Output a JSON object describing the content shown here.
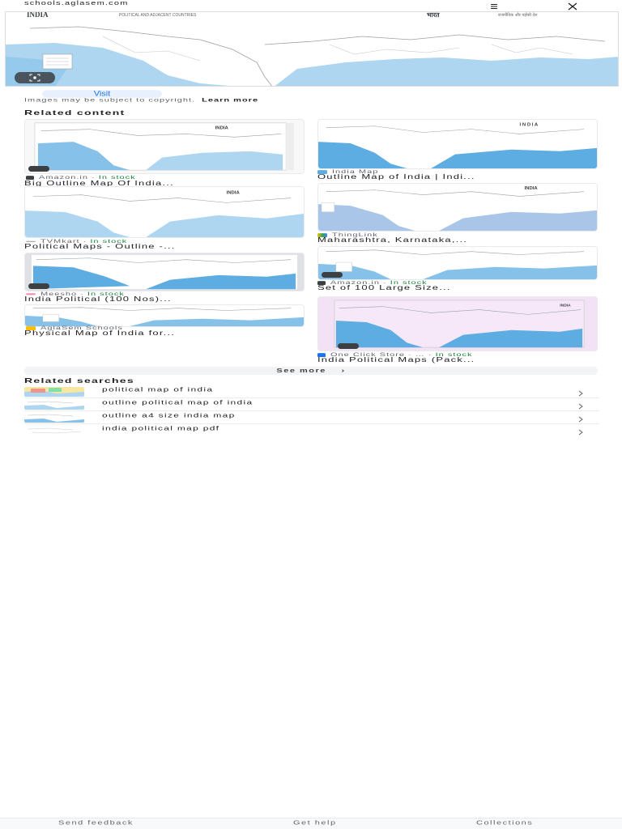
{
  "header": {
    "source_domain": "schools.aglasem.com",
    "menu_icon": "more-vert-icon",
    "close_icon": "close-icon"
  },
  "preview": {
    "map_title": "INDIA",
    "map_subtitle": "POLITICAL AND ADJACENT COUNTRIES",
    "map_title_hindi": "भारत",
    "map_subtitle_hindi": "राजनीतिक और पड़ोसी देश",
    "lens_icon": "lens-icon"
  },
  "visit_label": "Visit",
  "copyright": {
    "text": "Images may be subject to copyright.",
    "learn_more": "Learn more"
  },
  "related_content_title": "Related content",
  "cards": [
    {
      "source": "Amazon.in",
      "stock": "In stock",
      "title": "Big Outline Map Of India...",
      "thumb_label": "INDIA"
    },
    {
      "source": "India Map",
      "stock": "",
      "title": "Outline Map of India | Indi...",
      "thumb_label": "I N D I A"
    },
    {
      "source": "TVMkart",
      "stock": "In stock",
      "title": "Political Maps - Outline -...",
      "thumb_label": "INDIA"
    },
    {
      "source": "ThingLink",
      "stock": "",
      "title": "Maharashtra, Karnataka,...",
      "thumb_label": "INDIA"
    },
    {
      "source": "Meesho",
      "stock": "In stock",
      "title": "India Political (100 Nos)...",
      "thumb_label": ""
    },
    {
      "source": "Amazon.in",
      "stock": "In stock",
      "title": "Set of 100 Large Size...",
      "thumb_label": ""
    },
    {
      "source": "AglaSem Schools",
      "stock": "",
      "title": "Physical Map of India for...",
      "thumb_label": ""
    },
    {
      "source": "One Click Store",
      "stock": "In stock",
      "title": "India Political Maps (Pack...",
      "thumb_label": "INDIA"
    }
  ],
  "see_more_label": "See more",
  "related_searches_title": "Related searches",
  "related_searches": [
    {
      "text": "political map of india"
    },
    {
      "text": "outline political map of india"
    },
    {
      "text": "outline a4 size india map"
    },
    {
      "text": "india political map pdf"
    }
  ],
  "footer": {
    "send_feedback": "Send feedback",
    "get_help": "Get help",
    "collections": "Collections"
  },
  "colors": {
    "sea": "#aed6f1",
    "sea_dark": "#5dade2",
    "stock_green": "#188038",
    "link_blue": "#1a73e8",
    "pink_bg": "#f3e1f5"
  }
}
